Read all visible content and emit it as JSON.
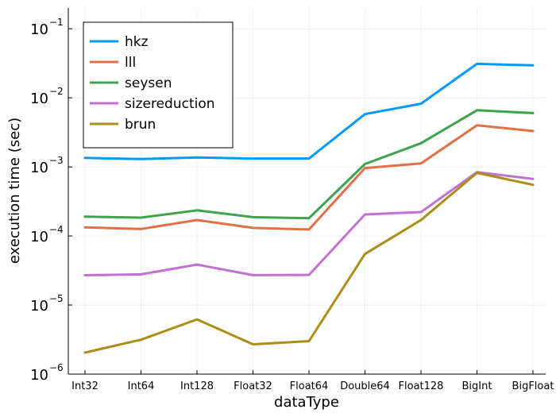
{
  "chart_data": {
    "type": "line",
    "title": "",
    "xlabel": "dataType",
    "ylabel": "execution time (sec)",
    "yscale": "log",
    "ylim": [
      1e-06,
      0.2
    ],
    "grid": true,
    "legend_position": "top-left",
    "categories": [
      "Int32",
      "Int64",
      "Int128",
      "Float32",
      "Float64",
      "Double64",
      "Float128",
      "BigInt",
      "BigFloat"
    ],
    "y_ticks": [
      {
        "value": 1e-06,
        "base": "10",
        "exp": "−6"
      },
      {
        "value": 1e-05,
        "base": "10",
        "exp": "−5"
      },
      {
        "value": 0.0001,
        "base": "10",
        "exp": "−4"
      },
      {
        "value": 0.001,
        "base": "10",
        "exp": "−3"
      },
      {
        "value": 0.01,
        "base": "10",
        "exp": "−2"
      },
      {
        "value": 0.1,
        "base": "10",
        "exp": "−1"
      }
    ],
    "series": [
      {
        "name": "hkz",
        "color": "#009AFA",
        "values": [
          0.00135,
          0.0013,
          0.00137,
          0.00132,
          0.00132,
          0.0058,
          0.0082,
          0.031,
          0.0295
        ]
      },
      {
        "name": "lll",
        "color": "#E26F46",
        "values": [
          0.000133,
          0.000126,
          0.00017,
          0.000131,
          0.000124,
          0.00096,
          0.00112,
          0.004,
          0.0033
        ]
      },
      {
        "name": "seysen",
        "color": "#3DA44D",
        "values": [
          0.00019,
          0.000184,
          0.000235,
          0.000187,
          0.000181,
          0.0011,
          0.0022,
          0.0066,
          0.006
        ]
      },
      {
        "name": "sizereduction",
        "color": "#C271D2",
        "values": [
          2.7e-05,
          2.78e-05,
          3.85e-05,
          2.71e-05,
          2.73e-05,
          0.000205,
          0.000222,
          0.00084,
          0.00067
        ]
      },
      {
        "name": "brun",
        "color": "#AC8D18",
        "values": [
          2.05e-06,
          3.15e-06,
          6.2e-06,
          2.7e-06,
          3e-06,
          5.5e-05,
          0.00017,
          0.00082,
          0.00055
        ]
      }
    ]
  }
}
